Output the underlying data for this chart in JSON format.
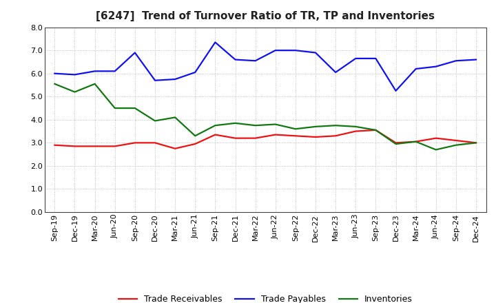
{
  "title": "[6247]  Trend of Turnover Ratio of TR, TP and Inventories",
  "x_labels": [
    "Sep-19",
    "Dec-19",
    "Mar-20",
    "Jun-20",
    "Sep-20",
    "Dec-20",
    "Mar-21",
    "Jun-21",
    "Sep-21",
    "Dec-21",
    "Mar-22",
    "Jun-22",
    "Sep-22",
    "Dec-22",
    "Mar-23",
    "Jun-23",
    "Sep-23",
    "Dec-23",
    "Mar-24",
    "Jun-24",
    "Sep-24",
    "Dec-24"
  ],
  "trade_receivables": [
    2.9,
    2.85,
    2.85,
    2.85,
    3.0,
    3.0,
    2.75,
    2.95,
    3.35,
    3.2,
    3.2,
    3.35,
    3.3,
    3.25,
    3.3,
    3.5,
    3.55,
    3.0,
    3.05,
    3.2,
    3.1,
    3.0
  ],
  "trade_payables": [
    6.0,
    5.95,
    6.1,
    6.1,
    6.9,
    5.7,
    5.75,
    6.05,
    7.35,
    6.6,
    6.55,
    7.0,
    7.0,
    6.9,
    6.05,
    6.65,
    6.65,
    5.25,
    6.2,
    6.3,
    6.55,
    6.6
  ],
  "inventories": [
    5.55,
    5.2,
    5.55,
    4.5,
    4.5,
    3.95,
    4.1,
    3.3,
    3.75,
    3.85,
    3.75,
    3.8,
    3.6,
    3.7,
    3.75,
    3.7,
    3.55,
    2.95,
    3.05,
    2.7,
    2.9,
    3.0
  ],
  "tr_color": "#EE1111",
  "tp_color": "#1111EE",
  "inv_color": "#117711",
  "ylim": [
    0.0,
    8.0
  ],
  "yticks": [
    0.0,
    1.0,
    2.0,
    3.0,
    4.0,
    5.0,
    6.0,
    7.0,
    8.0
  ],
  "legend_labels": [
    "Trade Receivables",
    "Trade Payables",
    "Inventories"
  ],
  "bg_color": "#FFFFFF",
  "plot_bg_color": "#FFFFFF",
  "grid_color": "#999999",
  "title_fontsize": 11,
  "tick_fontsize": 8,
  "legend_fontsize": 9,
  "linewidth": 1.6
}
